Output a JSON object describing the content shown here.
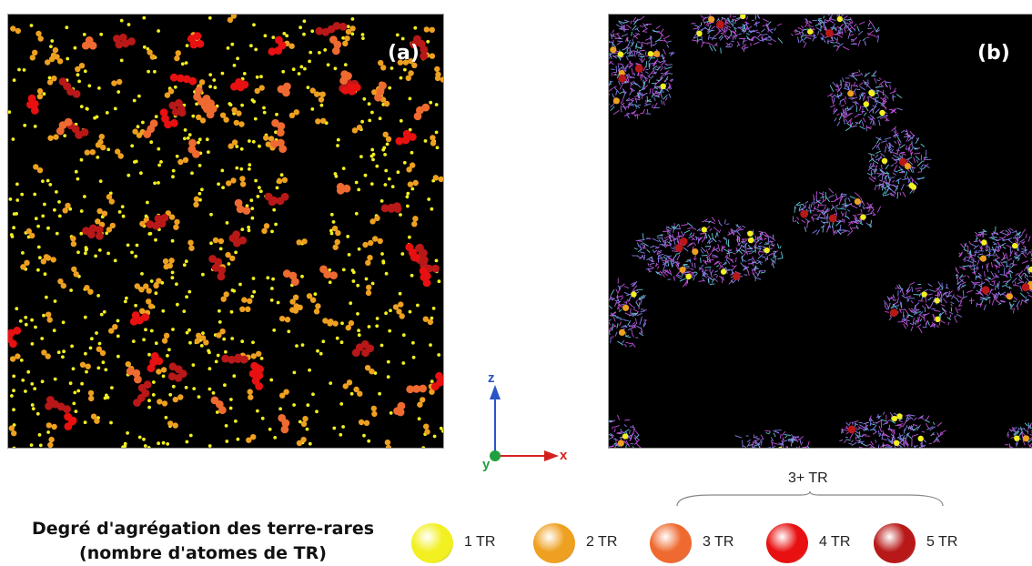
{
  "panels": {
    "a": {
      "label": "(a)"
    },
    "b": {
      "label": "(b)"
    }
  },
  "axes": {
    "z": "z",
    "x": "x",
    "y": "y",
    "colors": {
      "z": "#2a55c8",
      "x": "#d62020",
      "y": "#20a040"
    }
  },
  "legend": {
    "title_line1": "Degré d'agrégation des terre-rares",
    "title_line2": "(nombre d'atomes de TR)",
    "group_label": "3+ TR",
    "items": [
      {
        "label": "1 TR",
        "color": "#f2f020"
      },
      {
        "label": "2 TR",
        "color": "#eea020"
      },
      {
        "label": "3 TR",
        "color": "#ee6a30"
      },
      {
        "label": "4 TR",
        "color": "#e81010"
      },
      {
        "label": "5 TR",
        "color": "#b81818"
      }
    ]
  }
}
